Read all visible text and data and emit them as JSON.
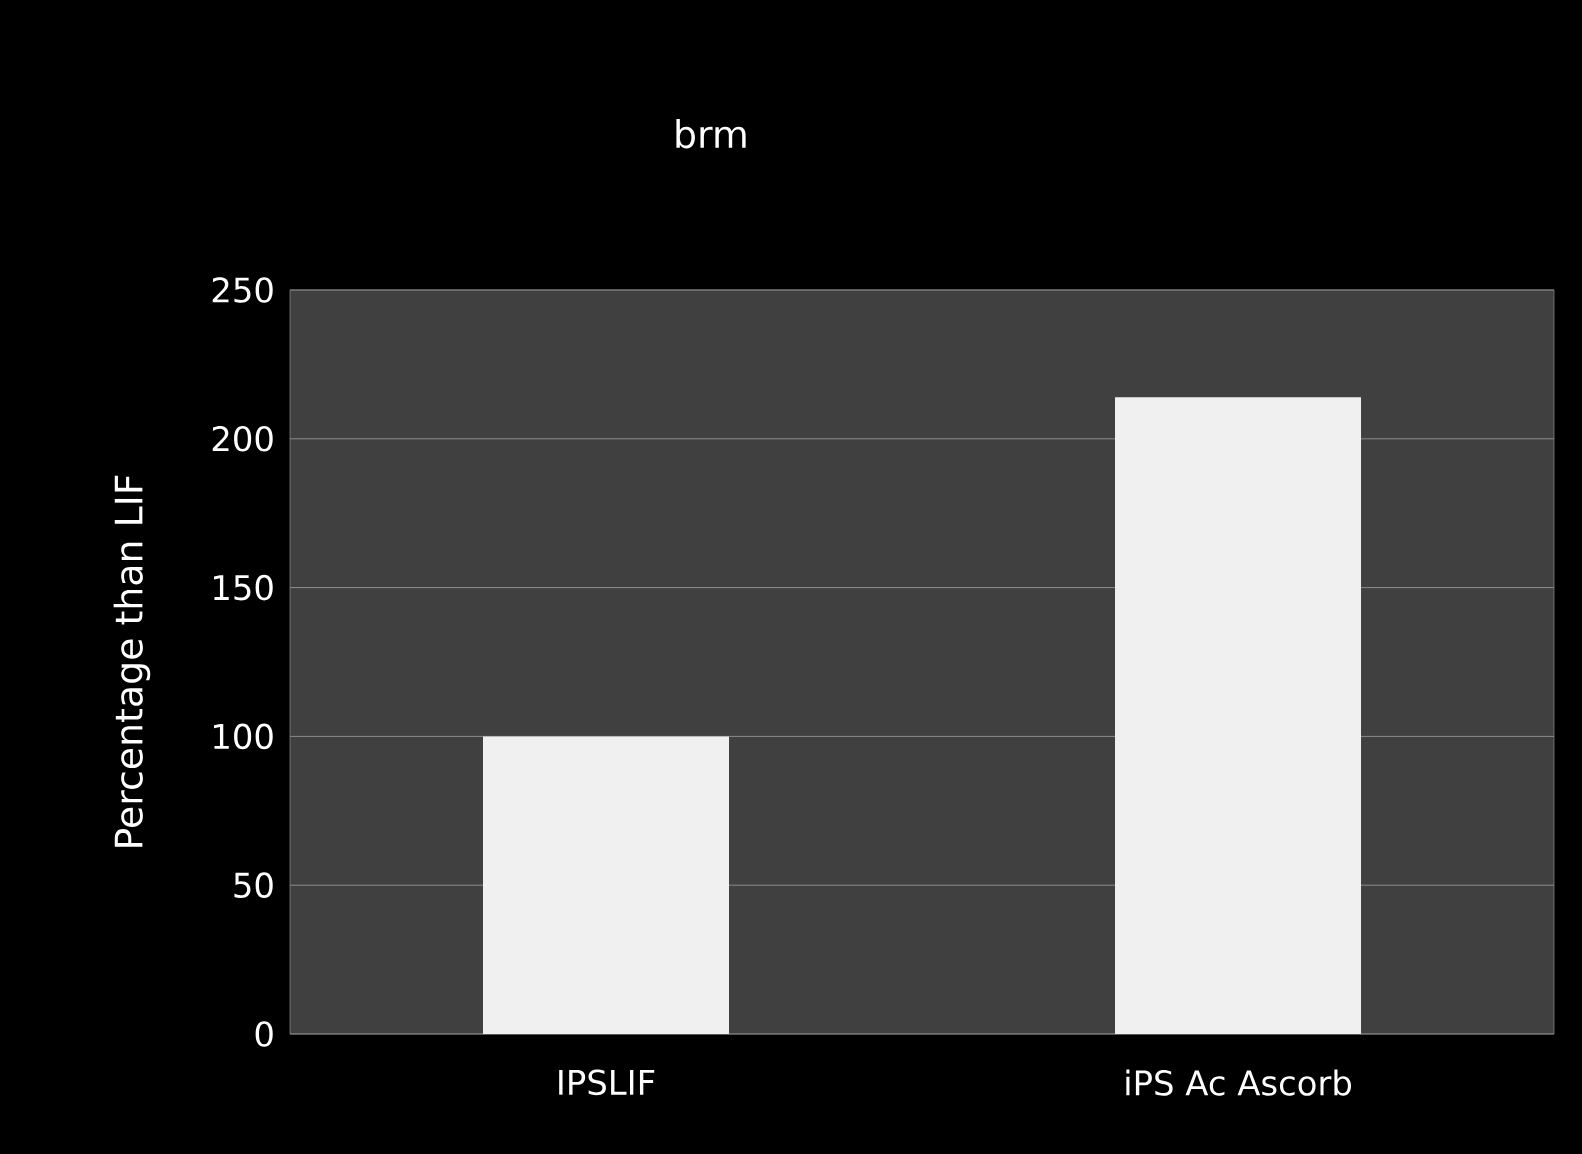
{
  "chart_data": {
    "type": "bar",
    "title": "brm",
    "ylabel": "Percentage than LIF",
    "categories": [
      "IPSLIF",
      "iPS Ac Ascorb"
    ],
    "values": [
      100,
      214
    ],
    "color": "#f0f0f0",
    "ylim": [
      0,
      250
    ],
    "yticks": [
      0,
      50,
      100,
      150,
      200,
      250
    ],
    "grid": "y"
  }
}
